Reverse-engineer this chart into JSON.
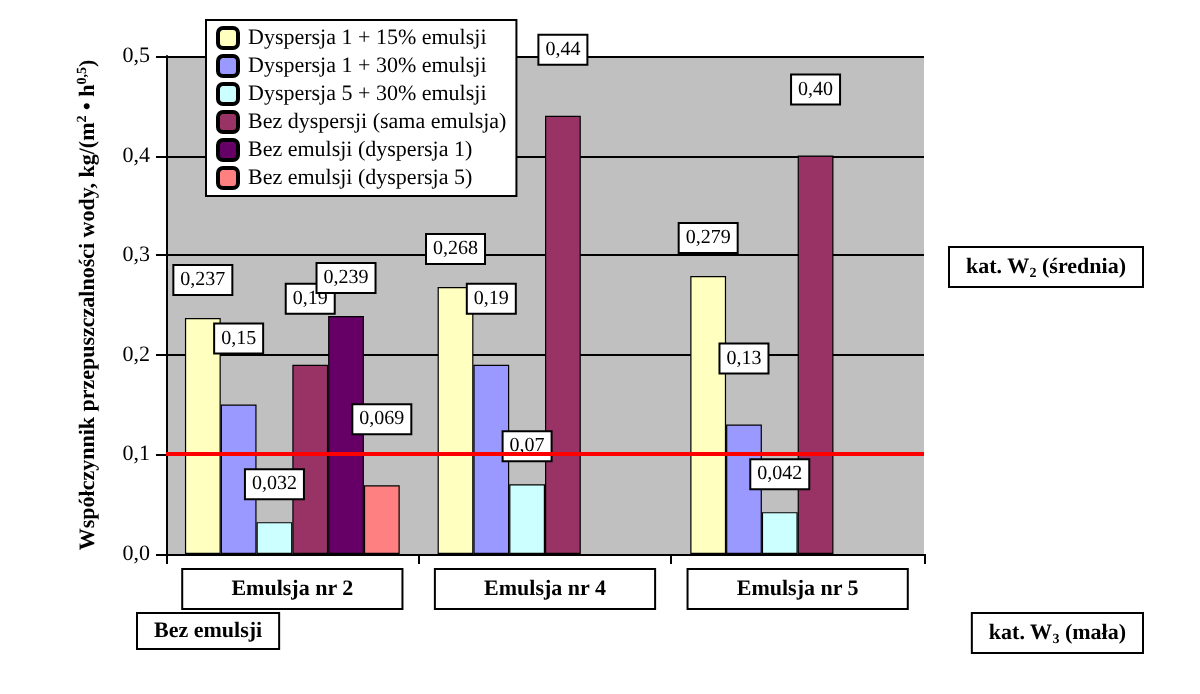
{
  "chart_data": {
    "type": "bar",
    "ylabel": "Współczynnik przepuszczalności wody, kg/(m$^{2}$ • h$^{0,5}$)",
    "categories": [
      "Emulsja nr 2",
      "Emulsja nr 4",
      "Emulsja nr 5"
    ],
    "series": [
      {
        "name": "Dyspersja 1 + 15% emulsji",
        "color": "#ffffc0",
        "values": [
          0.237,
          0.268,
          0.279
        ],
        "value_labels": [
          "0,237",
          "0,268",
          "0,279"
        ]
      },
      {
        "name": "Dyspersja 1 + 30% emulsji",
        "color": "#9999ff",
        "values": [
          0.15,
          0.19,
          0.13
        ],
        "value_labels": [
          "0,15",
          "0,19",
          "0,13"
        ]
      },
      {
        "name": "Dyspersja 5 + 30% emulsji",
        "color": "#ccffff",
        "values": [
          0.032,
          0.07,
          0.042
        ],
        "value_labels": [
          "0,032",
          "0,07",
          "0,042"
        ]
      },
      {
        "name": "Bez dyspersji (sama emulsja)",
        "color": "#993366",
        "values": [
          0.19,
          0.44,
          0.4
        ],
        "value_labels": [
          "0,19",
          "0,44",
          "0,40"
        ]
      },
      {
        "name": "Bez emulsji (dyspersja 1)",
        "color": "#660066",
        "values": [
          0.239,
          null,
          null
        ],
        "value_labels": [
          "0,239",
          null,
          null
        ]
      },
      {
        "name": "Bez emulsji (dyspersja 5)",
        "color": "#ff8080",
        "values": [
          0.069,
          null,
          null
        ],
        "value_labels": [
          "0,069",
          null,
          null
        ]
      }
    ],
    "ylim": [
      0,
      0.5
    ],
    "yticks": [
      {
        "value": 0,
        "label": "0,0"
      },
      {
        "value": 0.1,
        "label": "0,1"
      },
      {
        "value": 0.2,
        "label": "0,2"
      },
      {
        "value": 0.3,
        "label": "0,3"
      },
      {
        "value": 0.4,
        "label": "0,4"
      },
      {
        "value": 0.5,
        "label": "0,5"
      }
    ],
    "grid": "y",
    "legend": "top left",
    "ref_lines": [
      {
        "axis": "y",
        "value": 0.1,
        "color": "#ff0000",
        "line_style": "solid"
      }
    ],
    "annotations": [
      "Bez emulsji",
      "kat. W$_{2}$ (średnia)",
      "kat. W$_{3}$ (mała)"
    ]
  }
}
